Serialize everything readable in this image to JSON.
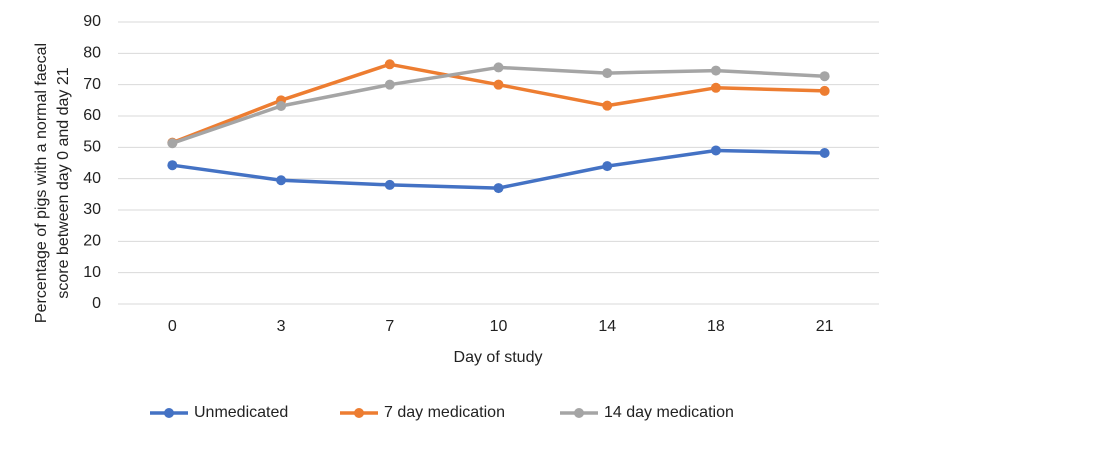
{
  "chart_data": {
    "type": "line",
    "y_label": [
      "Percentage of pigs with a normal faecal",
      "score between  day 0 and day 21"
    ],
    "x_label": "Day of study",
    "categories": [
      "0",
      "3",
      "7",
      "10",
      "14",
      "18",
      "21"
    ],
    "series": [
      {
        "name": "Unmedicated",
        "color": "#4472c4",
        "values": [
          44.3,
          39.5,
          38,
          37,
          44,
          49,
          48.2
        ]
      },
      {
        "name": "7 day medication",
        "color": "#ed7d31",
        "values": [
          51.5,
          65,
          76.5,
          70,
          63.3,
          69,
          68
        ]
      },
      {
        "name": "14 day medication",
        "color": "#a5a5a5",
        "values": [
          51.3,
          63.2,
          70,
          75.5,
          73.7,
          74.5,
          72.7
        ]
      }
    ],
    "ylim": [
      0,
      90
    ],
    "yticks": [
      0,
      10,
      20,
      30,
      40,
      50,
      60,
      70,
      80,
      90
    ],
    "grid": true,
    "legend": "bottom"
  }
}
